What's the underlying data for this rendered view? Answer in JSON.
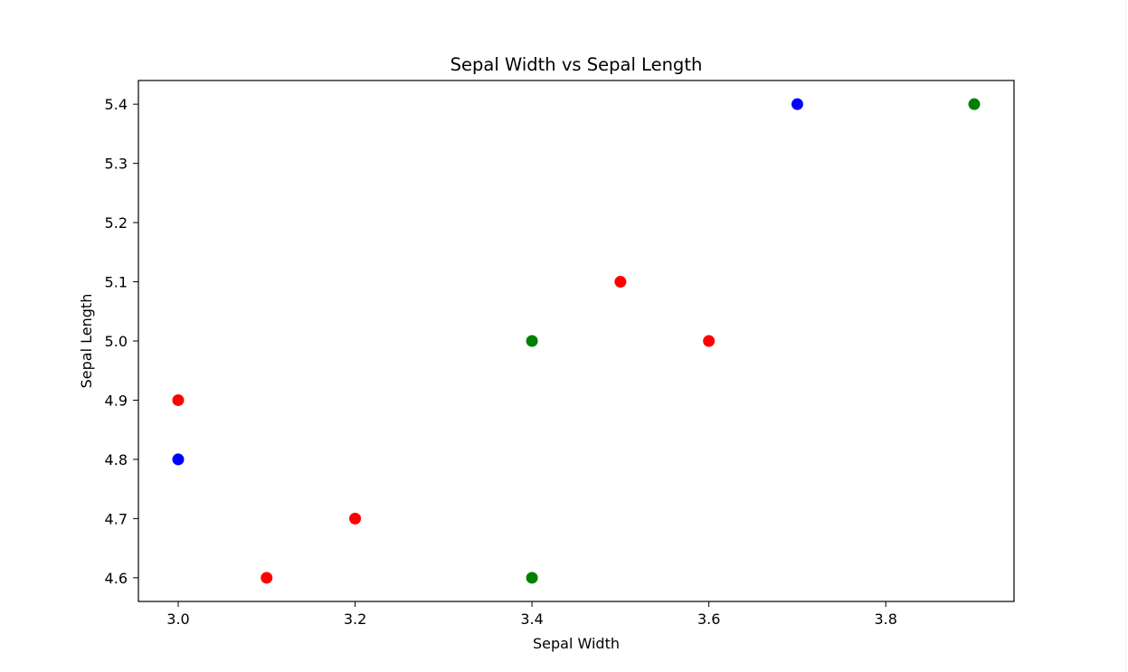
{
  "chart_data": {
    "type": "scatter",
    "title": "Sepal Width vs Sepal Length",
    "xlabel": "Sepal Width",
    "ylabel": "Sepal Length",
    "xlim": [
      2.955,
      3.945
    ],
    "ylim": [
      4.56,
      5.44
    ],
    "x_ticks": [
      "3.0",
      "3.2",
      "3.4",
      "3.6",
      "3.8"
    ],
    "y_ticks": [
      "4.6",
      "4.7",
      "4.8",
      "4.9",
      "5.0",
      "5.1",
      "5.2",
      "5.3",
      "5.4"
    ],
    "grid": false,
    "points": [
      {
        "x": 3.0,
        "y": 4.9,
        "color": "#ff0000"
      },
      {
        "x": 3.0,
        "y": 4.8,
        "color": "#0000ff"
      },
      {
        "x": 3.1,
        "y": 4.6,
        "color": "#ff0000"
      },
      {
        "x": 3.2,
        "y": 4.7,
        "color": "#ff0000"
      },
      {
        "x": 3.4,
        "y": 5.0,
        "color": "#008000"
      },
      {
        "x": 3.4,
        "y": 4.6,
        "color": "#008000"
      },
      {
        "x": 3.5,
        "y": 5.1,
        "color": "#ff0000"
      },
      {
        "x": 3.6,
        "y": 5.0,
        "color": "#ff0000"
      },
      {
        "x": 3.7,
        "y": 5.4,
        "color": "#0000ff"
      },
      {
        "x": 3.9,
        "y": 5.4,
        "color": "#008000"
      }
    ]
  }
}
